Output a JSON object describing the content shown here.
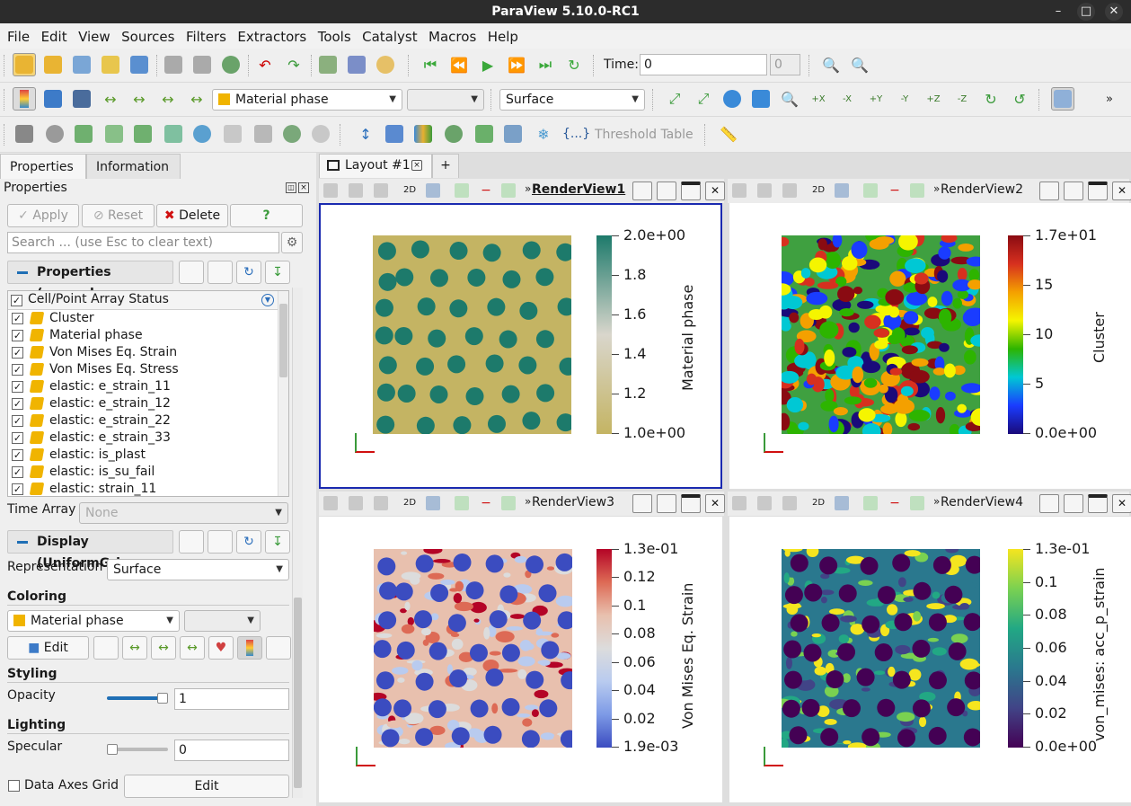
{
  "window": {
    "title": "ParaView 5.10.0-RC1"
  },
  "menu": [
    "File",
    "Edit",
    "View",
    "Sources",
    "Filters",
    "Extractors",
    "Tools",
    "Catalyst",
    "Macros",
    "Help"
  ],
  "toolbar1": {
    "time_label": "Time:",
    "time_value": "0",
    "time_index": "0"
  },
  "toolbar2": {
    "color_array": "Material phase",
    "component": "",
    "representation": "Surface"
  },
  "toolbar3": {
    "threshold_table": "Threshold Table",
    "braces": "{...}"
  },
  "left_panel": {
    "tabs": [
      "Properties",
      "Information"
    ],
    "header": "Properties",
    "buttons": {
      "apply": "Apply",
      "reset": "Reset",
      "delete": "Delete",
      "help": "?"
    },
    "search_placeholder": "Search ... (use Esc to clear text)",
    "properties_section": "Properties (example",
    "array_status_header": "Cell/Point Array Status",
    "arrays": [
      "Cluster",
      "Material phase",
      "Von Mises Eq. Strain",
      "Von Mises Eq. Stress",
      "elastic: e_strain_11",
      "elastic: e_strain_12",
      "elastic: e_strain_22",
      "elastic: e_strain_33",
      "elastic: is_plast",
      "elastic: is_su_fail",
      "elastic: strain_11"
    ],
    "time_array_label": "Time Array",
    "time_array_value": "None",
    "display_section": "Display (UniformGric",
    "representation_label": "Representation",
    "representation_value": "Surface",
    "coloring_label": "Coloring",
    "coloring_value": "Material phase",
    "edit_label": "Edit",
    "styling_label": "Styling",
    "opacity_label": "Opacity",
    "opacity_value": "1",
    "lighting_label": "Lighting",
    "specular_label": "Specular",
    "specular_value": "0",
    "data_axes_grid_label": "Data Axes Grid",
    "data_axes_grid_edit": "Edit"
  },
  "layout": {
    "tab_label": "Layout #1",
    "add_tab": "+"
  },
  "views": [
    {
      "name": "RenderView1",
      "active": true,
      "colorbar_title": "Material phase",
      "ticks": [
        "2.0e+00",
        "1.8",
        "1.6",
        "1.4",
        "1.2",
        "1.0e+00"
      ],
      "colors": [
        "#1d7a6b",
        "#d9d6cc",
        "#c4b463"
      ]
    },
    {
      "name": "RenderView2",
      "active": false,
      "colorbar_title": "Cluster",
      "ticks": [
        "1.7e+01",
        "15",
        "10",
        "5",
        "0.0e+00"
      ],
      "colors": [
        "#8a0b12",
        "#d7301f",
        "#f4a000",
        "#f5f500",
        "#2db400",
        "#00c8d4",
        "#1a3cff",
        "#1a0a7a"
      ]
    },
    {
      "name": "RenderView3",
      "active": false,
      "colorbar_title": "Von Mises Eq. Strain",
      "ticks": [
        "1.3e-01",
        "0.12",
        "0.1",
        "0.08",
        "0.06",
        "0.04",
        "0.02",
        "1.9e-03"
      ],
      "colors": [
        "#b40426",
        "#dd6a55",
        "#e8c0ae",
        "#dcdcdc",
        "#b9cbef",
        "#7d9ae6",
        "#3b4cc0"
      ]
    },
    {
      "name": "RenderView4",
      "active": false,
      "colorbar_title": "von_mises: acc_p_strain",
      "ticks": [
        "1.3e-01",
        "0.1",
        "0.08",
        "0.06",
        "0.04",
        "0.02",
        "0.0e+00"
      ],
      "colors": [
        "#f5e51f",
        "#7ad151",
        "#22a884",
        "#2a788e",
        "#414487",
        "#440154"
      ]
    }
  ],
  "view_header": {
    "mode_2d": "2D",
    "chevron": "»"
  }
}
